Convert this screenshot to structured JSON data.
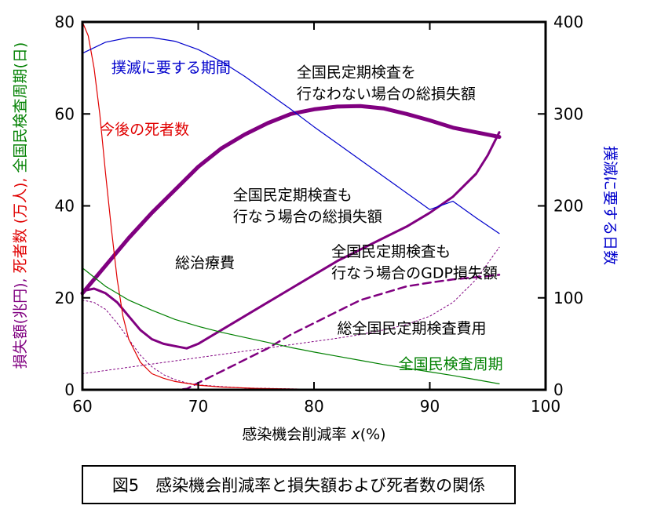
{
  "caption": "図5　感染機会削減率と損失額および死者数の関係",
  "colors": {
    "purple": "#800080",
    "red": "#e00000",
    "green": "#008000",
    "blue": "#0000cc",
    "black": "#000000"
  },
  "chart_data": {
    "type": "line",
    "xlim": [
      60,
      100
    ],
    "ylim_left": [
      0,
      80
    ],
    "ylim_right": [
      0,
      400
    ],
    "x_ticks": [
      "60",
      "70",
      "80",
      "90",
      "100"
    ],
    "y_left_ticks": [
      "0",
      "20",
      "40",
      "60",
      "80"
    ],
    "y_right_ticks": [
      "0",
      "100",
      "200",
      "300",
      "400"
    ],
    "xlabel": {
      "text": "感染機会削減率 ",
      "var": "x",
      "unit": "(%)"
    },
    "ylabel_left_parts": [
      {
        "text": "損失額(兆円), ",
        "color": "#800080"
      },
      {
        "text": "死者数 (万人), ",
        "color": "#e00000"
      },
      {
        "text": "全国民検査周期(日)",
        "color": "#008000"
      }
    ],
    "ylabel_right": "撲滅に要する日数",
    "annotations": [
      {
        "text": "撲滅に要する期間",
        "color": "#0000cc",
        "x": 62.5,
        "y": 69
      },
      {
        "text": "全国民定期検査を",
        "color": "#000000",
        "x": 78.5,
        "y": 68
      },
      {
        "text": "行なわない場合の総損失額",
        "color": "#000000",
        "x": 78.5,
        "y": 63.3
      },
      {
        "text": "今後の死者数",
        "color": "#e00000",
        "x": 61.5,
        "y": 55.5
      },
      {
        "text": "全国民定期検査も",
        "color": "#000000",
        "x": 73,
        "y": 41.3
      },
      {
        "text": "行なう場合の総損失額",
        "color": "#000000",
        "x": 73,
        "y": 36.6
      },
      {
        "text": "総治療費",
        "color": "#000000",
        "x": 68,
        "y": 26.5
      },
      {
        "text": "全国民定期検査も",
        "color": "#000000",
        "x": 81.5,
        "y": 29
      },
      {
        "text": "行なう場合のGDP損失額",
        "color": "#000000",
        "x": 81.5,
        "y": 24.3
      },
      {
        "text": "総全国民定期検査費用",
        "color": "#000000",
        "x": 82,
        "y": 12.3
      },
      {
        "text": "全国民検査周期",
        "color": "#008000",
        "x": 87.3,
        "y": 4.5
      }
    ],
    "series": [
      {
        "axis": "left",
        "color": "#800080",
        "width": 5,
        "dash": "",
        "x": [
          60,
          62,
          64,
          66,
          68,
          70,
          72,
          74,
          76,
          78,
          80,
          82,
          84,
          86,
          88,
          90,
          92,
          94,
          96
        ],
        "y": [
          21,
          27,
          33,
          38.5,
          43.5,
          48.5,
          52.5,
          55.5,
          58,
          60,
          61,
          61.6,
          61.7,
          61.2,
          60,
          58.6,
          57,
          56,
          55
        ]
      },
      {
        "axis": "left",
        "color": "#800080",
        "width": 3,
        "dash": "",
        "x": [
          60,
          61,
          62,
          63,
          64,
          65,
          66,
          67,
          68,
          69,
          70,
          72,
          74,
          76,
          78,
          80,
          82,
          84,
          86,
          88,
          90,
          92,
          94,
          95,
          96
        ],
        "y": [
          21.5,
          22,
          21,
          19,
          16,
          13,
          11,
          10,
          9.5,
          9,
          10,
          13,
          16,
          19,
          22,
          25,
          28,
          30.5,
          33,
          35.5,
          38.5,
          42,
          47,
          51,
          56
        ]
      },
      {
        "axis": "left",
        "color": "#800080",
        "width": 2.5,
        "dash": "10,6",
        "x": [
          60,
          62,
          64,
          66,
          68,
          69,
          70,
          72,
          74,
          76,
          78,
          80,
          82,
          84,
          86,
          88,
          90,
          92,
          94,
          96
        ],
        "y": [
          0,
          0,
          0,
          0,
          0,
          0.2,
          1.5,
          4,
          6.5,
          9,
          12,
          14.5,
          17,
          19.5,
          21,
          22.5,
          23.3,
          24,
          24.5,
          25
        ]
      },
      {
        "axis": "left",
        "color": "#800080",
        "width": 1,
        "dash": "2,3",
        "x": [
          60,
          62,
          64,
          66,
          68,
          70,
          72,
          74,
          76,
          78,
          80,
          82,
          84,
          86,
          88,
          90,
          92,
          94,
          96
        ],
        "y": [
          3.5,
          4.2,
          4.9,
          5.6,
          6.3,
          7,
          7.7,
          8.4,
          9.1,
          9.8,
          10.5,
          11.2,
          12,
          13,
          14.2,
          16,
          19,
          24,
          31
        ]
      },
      {
        "axis": "left",
        "color": "#800080",
        "width": 1,
        "dash": "2,3",
        "x": [
          60,
          61,
          62,
          63,
          64,
          65,
          66,
          67,
          68,
          69,
          70,
          72,
          74,
          76,
          78,
          80
        ],
        "y": [
          19.5,
          19,
          17.5,
          14.5,
          11,
          7.5,
          5,
          3.3,
          2.2,
          1.5,
          1.1,
          0.7,
          0.4,
          0.3,
          0.2,
          0.1
        ]
      },
      {
        "axis": "left",
        "color": "#e00000",
        "width": 1.2,
        "dash": "",
        "x": [
          60,
          60.5,
          61,
          61.5,
          62,
          62.5,
          63,
          63.5,
          64,
          65,
          66,
          67,
          68,
          70,
          72,
          75,
          80,
          85
        ],
        "y": [
          80,
          77,
          70,
          60,
          47,
          35,
          24,
          16,
          11,
          6,
          3.5,
          2.5,
          1.8,
          1,
          0.6,
          0.3,
          0.1,
          0
        ]
      },
      {
        "axis": "left",
        "color": "#008000",
        "width": 1.2,
        "dash": "",
        "x": [
          60,
          62,
          64,
          66,
          68,
          70,
          72,
          74,
          76,
          78,
          80,
          82,
          84,
          86,
          88,
          90,
          92,
          94,
          96
        ],
        "y": [
          26.5,
          22.5,
          19.5,
          17.3,
          15.3,
          13.8,
          12.5,
          11.4,
          10.3,
          9.2,
          8.2,
          7.3,
          6.4,
          5.5,
          4.7,
          3.9,
          3.1,
          2.2,
          1.3
        ]
      },
      {
        "axis": "right",
        "color": "#0000cc",
        "width": 1.2,
        "dash": "",
        "x": [
          60,
          62,
          64,
          66,
          68,
          70,
          72,
          74,
          76,
          78,
          80,
          82,
          84,
          86,
          88,
          90,
          92,
          94,
          96
        ],
        "y": [
          366,
          378,
          383,
          383,
          379,
          370,
          357,
          341,
          323,
          305,
          286,
          268,
          250,
          232,
          214,
          196,
          205,
          187,
          170
        ]
      }
    ]
  }
}
